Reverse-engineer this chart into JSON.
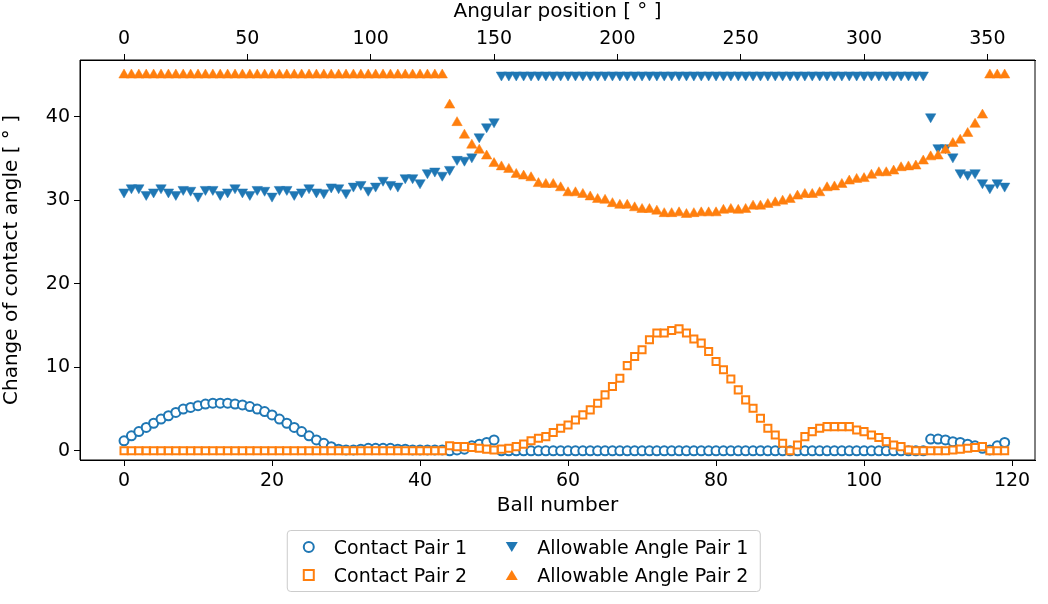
{
  "chart_data": {
    "type": "scatter",
    "xlabel": "Ball number",
    "ylabel": "Change of contact angle [ ° ]",
    "x2label": "Angular position [ ° ]",
    "x": [
      0,
      1,
      2,
      3,
      4,
      5,
      6,
      7,
      8,
      9,
      10,
      11,
      12,
      13,
      14,
      15,
      16,
      17,
      18,
      19,
      20,
      21,
      22,
      23,
      24,
      25,
      26,
      27,
      28,
      29,
      30,
      31,
      32,
      33,
      34,
      35,
      36,
      37,
      38,
      39,
      40,
      41,
      42,
      43,
      44,
      45,
      46,
      47,
      48,
      49,
      50,
      51,
      52,
      53,
      54,
      55,
      56,
      57,
      58,
      59,
      60,
      61,
      62,
      63,
      64,
      65,
      66,
      67,
      68,
      69,
      70,
      71,
      72,
      73,
      74,
      75,
      76,
      77,
      78,
      79,
      80,
      81,
      82,
      83,
      84,
      85,
      86,
      87,
      88,
      89,
      90,
      91,
      92,
      93,
      94,
      95,
      96,
      97,
      98,
      99,
      100,
      101,
      102,
      103,
      104,
      105,
      106,
      107,
      108,
      109,
      110,
      111,
      112,
      113,
      114,
      115,
      116,
      117,
      118,
      119
    ],
    "xlim": [
      -5.95,
      123.1
    ],
    "xticks": [
      0,
      20,
      40,
      60,
      80,
      100,
      120
    ],
    "x2lim": [
      -17.85,
      369.3
    ],
    "x2ticks": [
      0,
      50,
      100,
      150,
      200,
      250,
      300,
      350
    ],
    "ylim": [
      -1.1,
      46.8
    ],
    "yticks": [
      0,
      10,
      20,
      30,
      40
    ],
    "legend": "bottom",
    "series": [
      {
        "name": "Contact Pair 1",
        "color": "#1f77b4",
        "marker": "circle",
        "values": [
          1.2,
          1.8,
          2.3,
          2.8,
          3.3,
          3.8,
          4.2,
          4.6,
          5.0,
          5.2,
          5.4,
          5.6,
          5.7,
          5.7,
          5.7,
          5.6,
          5.5,
          5.3,
          5.0,
          4.7,
          4.3,
          3.8,
          3.3,
          2.8,
          2.3,
          1.8,
          1.3,
          0.9,
          0.5,
          0.2,
          0.1,
          0.1,
          0.2,
          0.3,
          0.3,
          0.3,
          0.3,
          0.2,
          0.2,
          0.1,
          0.1,
          0.1,
          0.1,
          0.1,
          0,
          0.1,
          0.2,
          0.6,
          0.8,
          1.0,
          1.3,
          0,
          0,
          0,
          0,
          0,
          0,
          0,
          0,
          0,
          0,
          0,
          0,
          0,
          0,
          0,
          0,
          0,
          0,
          0,
          0,
          0,
          0,
          0,
          0,
          0,
          0,
          0,
          0,
          0,
          0,
          0,
          0,
          0,
          0,
          0,
          0,
          0,
          0,
          0,
          0,
          0,
          0,
          0,
          0,
          0,
          0,
          0,
          0,
          0,
          0,
          0,
          0,
          0,
          0,
          0,
          0,
          0,
          0,
          1.4,
          1.4,
          1.3,
          1.1,
          1.0,
          0.8,
          0.6,
          0.3,
          0.1,
          0.6,
          1.0
        ]
      },
      {
        "name": "Contact Pair 2",
        "color": "#ff7f0e",
        "marker": "square",
        "values": [
          0,
          0,
          0,
          0,
          0,
          0,
          0,
          0,
          0,
          0,
          0,
          0,
          0,
          0,
          0,
          0,
          0,
          0,
          0,
          0,
          0,
          0,
          0,
          0,
          0,
          0,
          0,
          0,
          0,
          0,
          0,
          0,
          0,
          0,
          0,
          0,
          0,
          0,
          0,
          0,
          0,
          0,
          0,
          0,
          0.6,
          0.5,
          0.5,
          0.4,
          0.3,
          0.2,
          0.1,
          0.2,
          0.3,
          0.5,
          0.8,
          1.2,
          1.5,
          1.7,
          2.2,
          2.7,
          3.1,
          3.7,
          4.3,
          4.9,
          5.7,
          6.7,
          7.7,
          8.7,
          10.2,
          11.3,
          12.1,
          13.3,
          14.1,
          14.1,
          14.4,
          14.6,
          14.1,
          13.4,
          12.9,
          11.9,
          10.7,
          9.7,
          8.6,
          7.3,
          6.1,
          5.1,
          3.9,
          2.7,
          1.9,
          0.9,
          0,
          0.7,
          1.7,
          2.3,
          2.7,
          2.9,
          2.9,
          2.9,
          2.9,
          2.5,
          2.3,
          1.9,
          1.6,
          1.1,
          0.7,
          0.5,
          0.1,
          0,
          0,
          0,
          0,
          0,
          0.1,
          0.2,
          0.3,
          0.4,
          0.5,
          0,
          0,
          0
        ]
      },
      {
        "name": "Allowable Angle Pair 1",
        "color": "#1f77b4",
        "marker": "triangle_down",
        "values": [
          31.0,
          31.5,
          31.5,
          30.7,
          31.0,
          31.5,
          31.0,
          30.7,
          31.3,
          31.2,
          30.5,
          31.3,
          31.3,
          30.7,
          31.0,
          31.5,
          31.0,
          30.7,
          31.3,
          31.2,
          30.5,
          31.3,
          31.3,
          30.7,
          31.0,
          31.5,
          31.0,
          30.9,
          31.6,
          31.5,
          30.9,
          31.7,
          31.9,
          31.2,
          31.7,
          32.4,
          31.9,
          31.7,
          32.7,
          32.7,
          32.1,
          33.3,
          33.5,
          33.0,
          33.7,
          34.9,
          34.8,
          35.2,
          37.6,
          38.8,
          39.4,
          45,
          45,
          45,
          45,
          45,
          45,
          45,
          45,
          45,
          45,
          45,
          45,
          45,
          45,
          45,
          45,
          45,
          45,
          45,
          45,
          45,
          45,
          45,
          45,
          45,
          45,
          45,
          45,
          45,
          45,
          45,
          45,
          45,
          45,
          45,
          45,
          45,
          45,
          45,
          45,
          45,
          45,
          45,
          45,
          45,
          45,
          45,
          45,
          45,
          45,
          45,
          45,
          45,
          45,
          45,
          45,
          45,
          45,
          40.0,
          36.3,
          36.3,
          35.2,
          33.3,
          33.1,
          33.3,
          32.1,
          31.5,
          32.1,
          31.7
        ]
      },
      {
        "name": "Allowable Angle Pair 2",
        "color": "#ff7f0e",
        "marker": "triangle",
        "values": [
          45,
          45,
          45,
          45,
          45,
          45,
          45,
          45,
          45,
          45,
          45,
          45,
          45,
          45,
          45,
          45,
          45,
          45,
          45,
          45,
          45,
          45,
          45,
          45,
          45,
          45,
          45,
          45,
          45,
          45,
          45,
          45,
          45,
          45,
          45,
          45,
          45,
          45,
          45,
          45,
          45,
          45,
          45,
          45,
          41.4,
          39.3,
          37.8,
          36.6,
          36.0,
          35.3,
          34.4,
          34.0,
          33.7,
          33.1,
          32.9,
          32.7,
          32.0,
          31.9,
          31.9,
          31.5,
          30.9,
          30.9,
          30.7,
          30.4,
          30.1,
          30.0,
          29.6,
          29.4,
          29.4,
          29.1,
          28.9,
          28.9,
          28.7,
          28.4,
          28.4,
          28.5,
          28.3,
          28.4,
          28.5,
          28.5,
          28.5,
          28.8,
          28.9,
          28.8,
          28.9,
          29.3,
          29.3,
          29.5,
          29.7,
          29.9,
          30.1,
          30.5,
          30.7,
          30.7,
          30.9,
          31.5,
          31.6,
          31.9,
          32.3,
          32.5,
          32.6,
          33.0,
          33.3,
          33.3,
          33.5,
          33.9,
          34.0,
          34.1,
          34.7,
          35.2,
          35.3,
          36.0,
          36.8,
          37.2,
          38.0,
          39.1,
          40.2,
          45,
          45,
          45
        ]
      }
    ]
  }
}
